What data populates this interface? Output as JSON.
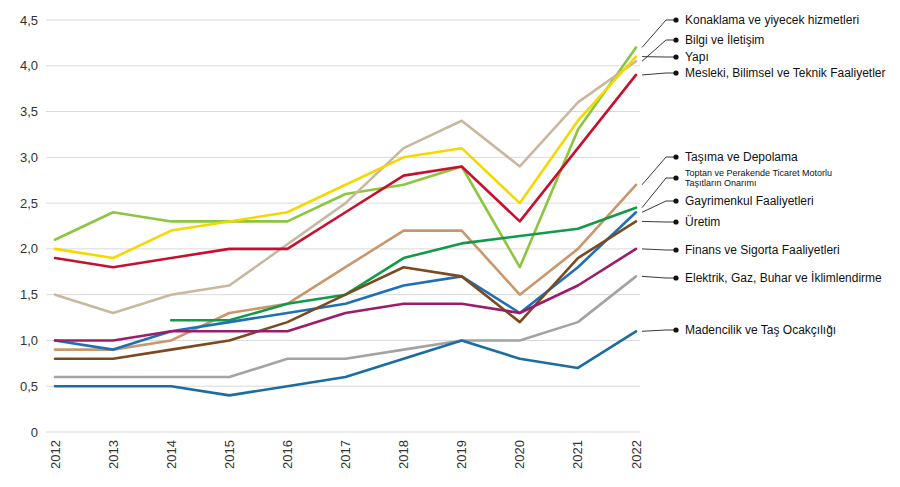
{
  "chart_data": {
    "type": "line",
    "categories": [
      "2012",
      "2013",
      "2014",
      "2015",
      "2016",
      "2017",
      "2018",
      "2019",
      "2020",
      "2021",
      "2022"
    ],
    "ylim": [
      0,
      4.5
    ],
    "yticks": [
      0,
      {
        "value": 0.5,
        "label": "0,5"
      },
      {
        "value": 1,
        "label": "1,0"
      },
      {
        "value": 1.5,
        "label": "1,5"
      },
      {
        "value": 2,
        "label": "2,0"
      },
      {
        "value": 2.5,
        "label": "2,5"
      },
      {
        "value": 3,
        "label": "3,0"
      },
      {
        "value": 3.5,
        "label": "3,5"
      },
      {
        "value": 4,
        "label": "4,0"
      },
      {
        "value": 4.5,
        "label": "4,5"
      }
    ],
    "grid": true,
    "series": [
      {
        "name": "Konaklama ve yiyecek hizmetleri",
        "color": "#8cc63f",
        "values": [
          2.1,
          2.4,
          2.3,
          2.3,
          2.3,
          2.6,
          2.7,
          2.9,
          1.8,
          3.3,
          4.2
        ]
      },
      {
        "name": "Bilgi ve İletişim",
        "color": "#c9b7a0",
        "values": [
          1.5,
          1.3,
          1.5,
          1.6,
          2.05,
          2.5,
          3.1,
          3.4,
          2.9,
          3.6,
          4.05
        ]
      },
      {
        "name": "Yapı",
        "color": "#f5d800",
        "values": [
          2.0,
          1.9,
          2.2,
          2.3,
          2.4,
          2.7,
          3.0,
          3.1,
          2.5,
          3.4,
          4.1
        ]
      },
      {
        "name": "Mesleki, Bilimsel ve Teknik Faaliyetler",
        "color": "#c8102e",
        "values": [
          1.9,
          1.8,
          1.9,
          2.0,
          2.0,
          2.4,
          2.8,
          2.9,
          2.3,
          3.1,
          3.9
        ]
      },
      {
        "name": "Taşıma ve Depolama",
        "color": "#c9976b",
        "values": [
          0.9,
          0.9,
          1.0,
          1.3,
          1.4,
          1.8,
          2.2,
          2.2,
          1.5,
          2.0,
          2.7
        ]
      },
      {
        "name": "Toptan ve Perakende Ticaret Motorlu Taşıtların Onarımı",
        "color": "#119a48",
        "values": [
          null,
          null,
          1.22,
          1.22,
          1.4,
          1.5,
          1.9,
          2.06,
          2.14,
          2.22,
          2.45
        ]
      },
      {
        "name": "Gayrimenkul Faaliyetleri",
        "color": "#1f6fb8",
        "values": [
          1.0,
          0.9,
          1.1,
          1.2,
          1.3,
          1.4,
          1.6,
          1.7,
          1.3,
          1.8,
          2.4
        ]
      },
      {
        "name": "Üretim",
        "color": "#7b4a1f",
        "values": [
          0.8,
          0.8,
          0.9,
          1.0,
          1.2,
          1.5,
          1.8,
          1.7,
          1.2,
          1.9,
          2.3
        ]
      },
      {
        "name": "Finans ve Sigorta Faaliyetleri",
        "color": "#9c1c6c",
        "values": [
          1.0,
          1.0,
          1.1,
          1.1,
          1.1,
          1.3,
          1.4,
          1.4,
          1.3,
          1.6,
          2.0
        ]
      },
      {
        "name": "Elektrik, Gaz, Buhar ve İklimlendirme",
        "color": "#a3a3a3",
        "values": [
          0.6,
          0.6,
          0.6,
          0.6,
          0.8,
          0.8,
          0.9,
          1.0,
          1.0,
          1.2,
          1.7
        ]
      },
      {
        "name": "Madencilik ve Taş Ocakçılığı",
        "color": "#1a6e9f",
        "values": [
          0.5,
          0.5,
          0.5,
          0.4,
          0.5,
          0.6,
          0.8,
          1.0,
          0.8,
          0.7,
          1.1
        ]
      }
    ]
  }
}
